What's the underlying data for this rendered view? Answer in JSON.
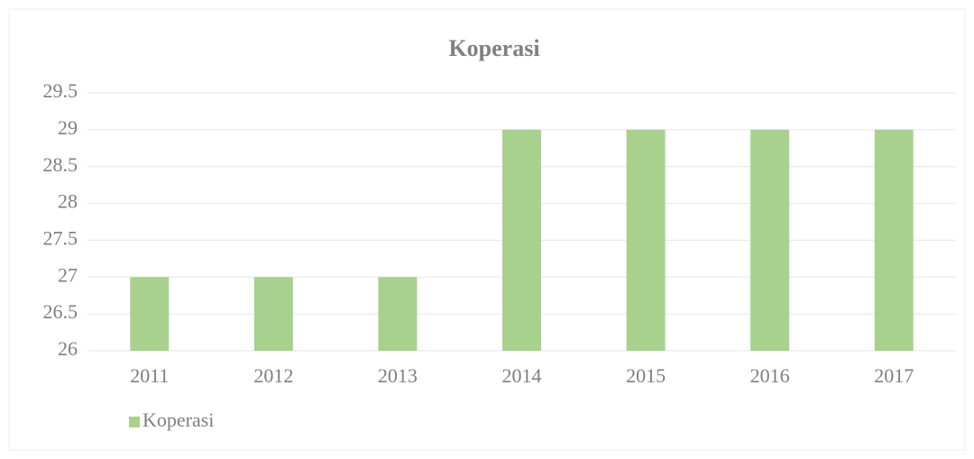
{
  "chart_data": {
    "type": "bar",
    "title": "Koperasi",
    "categories": [
      "2011",
      "2012",
      "2013",
      "2014",
      "2015",
      "2016",
      "2017"
    ],
    "series": [
      {
        "name": "Koperasi",
        "color": "#a9d18e",
        "values": [
          27,
          27,
          27,
          29,
          29,
          29,
          29
        ]
      }
    ],
    "ylim": [
      26,
      29.5
    ],
    "yticks": [
      26,
      26.5,
      27,
      27.5,
      28,
      28.5,
      29,
      29.5
    ],
    "grid": true,
    "legend": "bottom-left"
  }
}
